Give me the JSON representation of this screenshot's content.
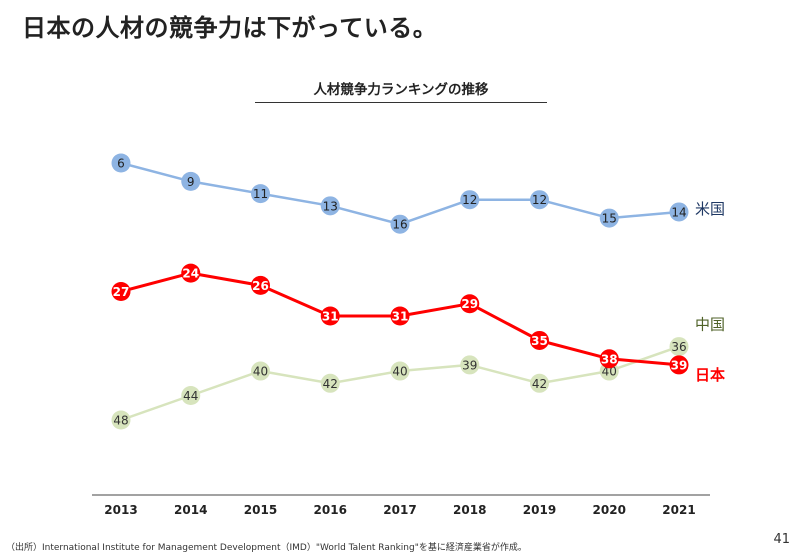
{
  "page": {
    "title": "日本の人材の競争力は下がっている。",
    "source": "（出所）International Institute for Management Development（IMD）\"World Talent Ranking\"を基に経済産業省が作成。",
    "page_number": "41"
  },
  "chart_data": {
    "type": "line",
    "title": "人材競争力ランキングの推移",
    "xlabel": "",
    "ylabel": "",
    "y_inverted": true,
    "ylim": [
      1,
      50
    ],
    "grid": false,
    "categories": [
      "2013",
      "2014",
      "2015",
      "2016",
      "2017",
      "2018",
      "2019",
      "2020",
      "2021"
    ],
    "series": [
      {
        "name": "米国",
        "color": "#8EB4E3",
        "label_color": "#1F3864",
        "values": [
          6,
          9,
          11,
          13,
          16,
          12,
          12,
          15,
          14
        ],
        "data_label_color": "#222222",
        "bold": false
      },
      {
        "name": "日本",
        "color": "#FF0000",
        "label_color": "#FF0000",
        "values": [
          27,
          24,
          26,
          31,
          31,
          29,
          35,
          38,
          39
        ],
        "data_label_color": "#FFFFFF",
        "bold": true
      },
      {
        "name": "中国",
        "color": "#D7E4BD",
        "label_color": "#4F6228",
        "values": [
          48,
          44,
          40,
          42,
          40,
          39,
          42,
          40,
          36
        ],
        "data_label_color": "#333333",
        "bold": false
      }
    ]
  }
}
